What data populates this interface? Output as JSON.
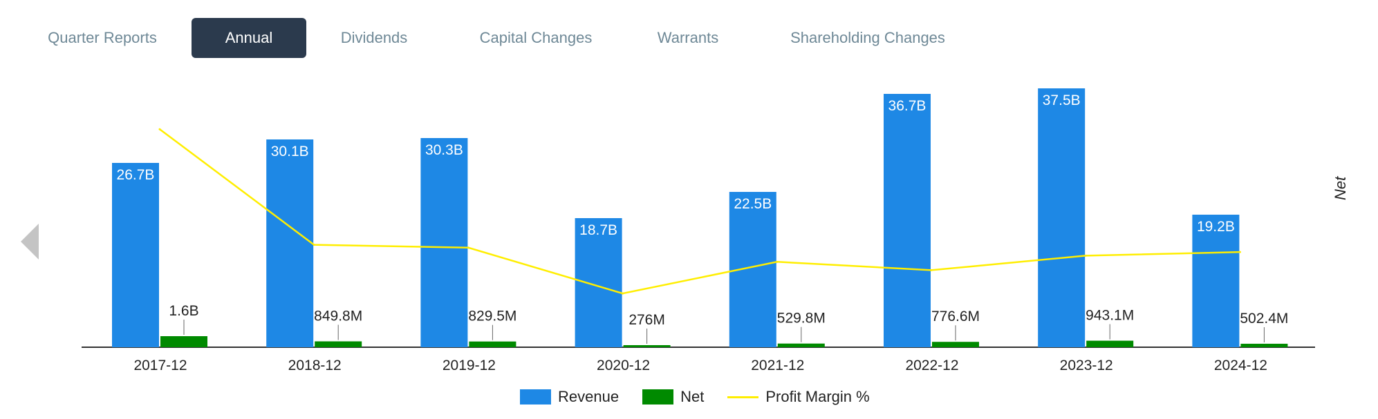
{
  "tabs": [
    {
      "label": "Quarter Reports",
      "active": false
    },
    {
      "label": "Annual",
      "active": true
    },
    {
      "label": "Dividends",
      "active": false
    },
    {
      "label": "Capital Changes",
      "active": false
    },
    {
      "label": "Warrants",
      "active": false
    },
    {
      "label": "Shareholding Changes",
      "active": false
    }
  ],
  "colors": {
    "revenue": "#1e88e5",
    "net": "#008a00",
    "profit_margin": "#ffee00",
    "tab_active_bg": "#2b3a4d",
    "tab_text": "#6e8896"
  },
  "chart_data": {
    "type": "bar",
    "categories": [
      "2017-12",
      "2018-12",
      "2019-12",
      "2020-12",
      "2021-12",
      "2022-12",
      "2023-12",
      "2024-12"
    ],
    "series": [
      {
        "name": "Revenue",
        "type": "bar",
        "values": [
          26.7,
          30.1,
          30.3,
          18.7,
          22.5,
          36.7,
          37.5,
          19.2
        ],
        "unit": "B",
        "labels": [
          "26.7B",
          "30.1B",
          "30.3B",
          "18.7B",
          "22.5B",
          "36.7B",
          "37.5B",
          "19.2B"
        ]
      },
      {
        "name": "Net",
        "type": "bar",
        "values": [
          1.6,
          0.8498,
          0.8295,
          0.276,
          0.5298,
          0.7766,
          0.9431,
          0.5024
        ],
        "unit": "B",
        "labels": [
          "1.6B",
          "849.8M",
          "829.5M",
          "276M",
          "529.8M",
          "776.6M",
          "943.1M",
          "502.4M"
        ]
      },
      {
        "name": "Profit Margin %",
        "type": "line",
        "values": [
          6.0,
          2.82,
          2.74,
          1.48,
          2.35,
          2.12,
          2.52,
          2.62
        ]
      }
    ],
    "xlabel": "",
    "ylabel": "",
    "secondary_ylabel": "Net",
    "ylim": [
      0,
      40
    ],
    "profit_margin_ylim": [
      0,
      7.6
    ],
    "legend_position": "bottom-center"
  }
}
